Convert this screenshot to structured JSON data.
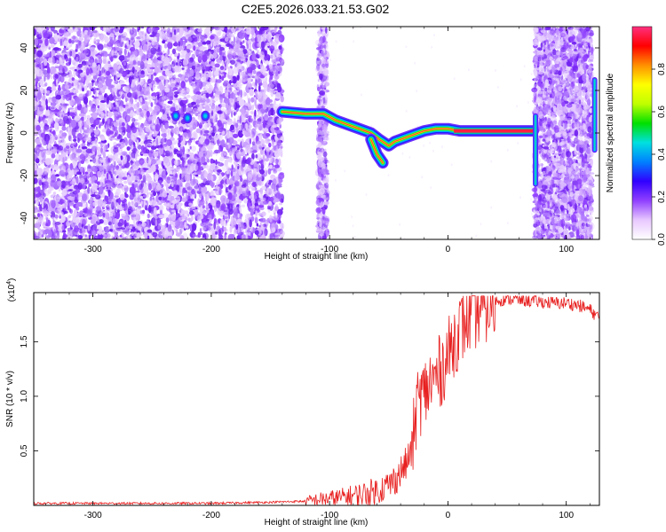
{
  "title": "C2E5.2026.033.21.53.G02",
  "chart_data": [
    {
      "type": "heatmap",
      "title": "C2E5.2026.033.21.53.G02",
      "xlabel": "Height of straight line (km)",
      "ylabel": "Frequency (Hz)",
      "xlim": [
        -350,
        128
      ],
      "ylim": [
        -50,
        50
      ],
      "xticks": [
        "-300",
        "-200",
        "-100",
        "0",
        "100"
      ],
      "yticks": [
        "-40",
        "-20",
        "0",
        "20",
        "40"
      ],
      "colorbar": {
        "label": "Normalized spectral amplitude",
        "range": [
          0,
          1
        ],
        "ticks": [
          "0.0",
          "0.2",
          "0.4",
          "0.6",
          "0.8"
        ],
        "colors": [
          "#ffffff",
          "#e8c8ff",
          "#9040ff",
          "#3000ff",
          "#0080ff",
          "#00e0e0",
          "#00e000",
          "#c0ff00",
          "#ffff00",
          "#ff9000",
          "#ff0000",
          "#ff3080"
        ]
      },
      "noise_regions": [
        [
          -350,
          -140
        ],
        [
          -110,
          -102
        ],
        [
          73,
          122
        ]
      ],
      "ridge": {
        "x": [
          -140,
          -120,
          -105,
          -95,
          -80,
          -65,
          -58,
          -50,
          -45,
          -35,
          -20,
          -10,
          0,
          10,
          20,
          40,
          60,
          72
        ],
        "y": [
          10,
          9,
          9,
          6,
          3,
          0,
          -3,
          -6,
          -4,
          -2,
          1,
          2,
          2,
          1,
          1,
          1,
          1,
          1
        ]
      },
      "ridge_branch": {
        "x": [
          -65,
          -60,
          -55
        ],
        "y": [
          -3,
          -10,
          -14
        ]
      },
      "blobs": [
        {
          "x": -230,
          "y": 8
        },
        {
          "x": -220,
          "y": 7
        },
        {
          "x": -205,
          "y": 8
        }
      ],
      "edge_features": [
        {
          "x": 74,
          "y_from": -24,
          "y_to": 8
        },
        {
          "x": 124,
          "y_from": -8,
          "y_to": 25
        }
      ]
    },
    {
      "type": "line",
      "xlabel": "Height of straight line (km)",
      "ylabel": "SNR (10 * v/v)",
      "exponent_label": "(x10",
      "exponent_power": "4",
      "exponent_close": ")",
      "xlim": [
        -350,
        128
      ],
      "ylim": [
        0,
        1.95
      ],
      "xticks": [
        "-300",
        "-200",
        "-100",
        "0",
        "100"
      ],
      "yticks": [
        "0.5",
        "1.0",
        "1.5"
      ],
      "series": [
        {
          "color": "#e82020",
          "x": [
            -350,
            -300,
            -250,
            -200,
            -150,
            -120,
            -110,
            -100,
            -90,
            -80,
            -70,
            -60,
            -50,
            -45,
            -40,
            -35,
            -30,
            -28,
            -25,
            -20,
            -15,
            -10,
            -5,
            0,
            5,
            10,
            15,
            20,
            25,
            30,
            40,
            50,
            60,
            70,
            80,
            90,
            100,
            110,
            120,
            128
          ],
          "y": [
            0.02,
            0.02,
            0.02,
            0.02,
            0.03,
            0.04,
            0.06,
            0.07,
            0.08,
            0.1,
            0.12,
            0.15,
            0.2,
            0.25,
            0.32,
            0.4,
            0.55,
            0.8,
            1.0,
            1.05,
            1.15,
            1.2,
            1.3,
            1.4,
            1.55,
            1.65,
            1.72,
            1.78,
            1.82,
            1.85,
            1.88,
            1.9,
            1.89,
            1.88,
            1.87,
            1.86,
            1.86,
            1.84,
            1.8,
            1.72
          ]
        }
      ]
    }
  ]
}
